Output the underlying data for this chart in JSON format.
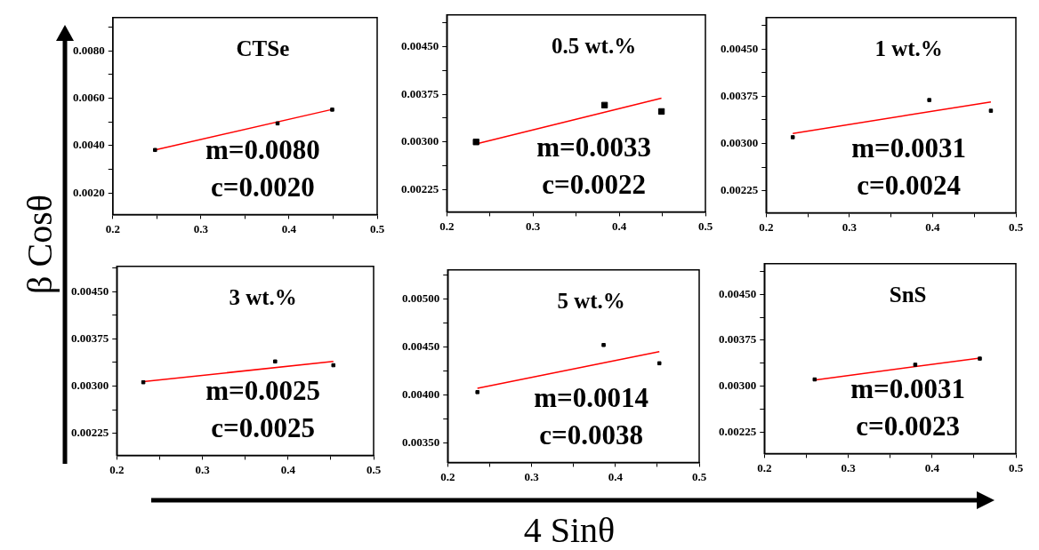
{
  "chart_data": [
    {
      "type": "scatter",
      "title": "CTSe",
      "ylabel": "β Cosθ",
      "annotations": [
        "m=0.0080",
        "c=0.0020"
      ],
      "grid": false,
      "xlim": [
        0.2,
        0.5
      ],
      "xticks": [
        {
          "value": 0.2,
          "label": "0.2"
        },
        {
          "value": 0.25,
          "label": null
        },
        {
          "value": 0.3,
          "label": "0.3"
        },
        {
          "value": 0.35,
          "label": null
        },
        {
          "value": 0.4,
          "label": "0.4"
        },
        {
          "value": 0.45,
          "label": null
        },
        {
          "value": 0.5,
          "label": "0.5"
        }
      ],
      "ylim": [
        0.0011,
        0.0094
      ],
      "yticks": [
        {
          "value": 0.002,
          "label": "0.0020"
        },
        {
          "value": 0.003,
          "label": null
        },
        {
          "value": 0.004,
          "label": "0.0040"
        },
        {
          "value": 0.005,
          "label": null
        },
        {
          "value": 0.006,
          "label": "0.0060"
        },
        {
          "value": 0.007,
          "label": null
        },
        {
          "value": 0.008,
          "label": "0.0080"
        },
        {
          "value": 0.009,
          "label": null
        }
      ],
      "series": [
        {
          "type": "scatter",
          "marker": "square",
          "color": "#000000",
          "x": [
            0.248,
            0.387,
            0.449
          ],
          "values": [
            0.00382,
            0.00494,
            0.00552
          ]
        },
        {
          "type": "line",
          "marker": "none",
          "color": "#ff0000",
          "x": [
            0.248,
            0.449
          ],
          "values": [
            0.00382,
            0.00553
          ]
        }
      ]
    },
    {
      "type": "scatter",
      "title": "0.5 wt.%",
      "annotations": [
        "m=0.0033",
        "c=0.0022"
      ],
      "grid": false,
      "xlim": [
        0.2,
        0.5
      ],
      "xticks": [
        {
          "value": 0.2,
          "label": "0.2"
        },
        {
          "value": 0.25,
          "label": null
        },
        {
          "value": 0.3,
          "label": "0.3"
        },
        {
          "value": 0.35,
          "label": null
        },
        {
          "value": 0.4,
          "label": "0.4"
        },
        {
          "value": 0.45,
          "label": null
        },
        {
          "value": 0.5,
          "label": "0.5"
        }
      ],
      "ylim": [
        0.0019,
        0.005
      ],
      "yticks": [
        {
          "value": 0.00225,
          "label": "0.00225"
        },
        {
          "value": 0.002625,
          "label": null
        },
        {
          "value": 0.003,
          "label": "0.00300"
        },
        {
          "value": 0.003375,
          "label": null
        },
        {
          "value": 0.00375,
          "label": "0.00375"
        },
        {
          "value": 0.004125,
          "label": null
        },
        {
          "value": 0.0045,
          "label": "0.00450"
        },
        {
          "value": 0.004875,
          "label": null
        }
      ],
      "series": [
        {
          "type": "scatter",
          "marker": "square",
          "color": "#000000",
          "x": [
            0.234,
            0.383,
            0.449
          ],
          "values": [
            0.003,
            0.00358,
            0.00348
          ]
        },
        {
          "type": "line",
          "marker": "none",
          "color": "#ff0000",
          "x": [
            0.234,
            0.449
          ],
          "values": [
            0.00297,
            0.00369
          ]
        }
      ]
    },
    {
      "type": "scatter",
      "title": "1 wt.%",
      "annotations": [
        "m=0.0031",
        "c=0.0024"
      ],
      "grid": false,
      "xlim": [
        0.2,
        0.5
      ],
      "xticks": [
        {
          "value": 0.2,
          "label": "0.2"
        },
        {
          "value": 0.25,
          "label": null
        },
        {
          "value": 0.3,
          "label": "0.3"
        },
        {
          "value": 0.35,
          "label": null
        },
        {
          "value": 0.4,
          "label": "0.4"
        },
        {
          "value": 0.45,
          "label": null
        },
        {
          "value": 0.5,
          "label": "0.5"
        }
      ],
      "ylim": [
        0.0019,
        0.005
      ],
      "yticks": [
        {
          "value": 0.00225,
          "label": "0.00225"
        },
        {
          "value": 0.002625,
          "label": null
        },
        {
          "value": 0.003,
          "label": "0.00300"
        },
        {
          "value": 0.003375,
          "label": null
        },
        {
          "value": 0.00375,
          "label": "0.00375"
        },
        {
          "value": 0.004125,
          "label": null
        },
        {
          "value": 0.0045,
          "label": "0.00450"
        },
        {
          "value": 0.004875,
          "label": null
        }
      ],
      "series": [
        {
          "type": "scatter",
          "marker": "square",
          "color": "#000000",
          "x": [
            0.232,
            0.396,
            0.47
          ],
          "values": [
            0.0031,
            0.00369,
            0.00352
          ]
        },
        {
          "type": "line",
          "marker": "none",
          "color": "#ff0000",
          "x": [
            0.232,
            0.47
          ],
          "values": [
            0.00316,
            0.00366
          ]
        }
      ]
    },
    {
      "type": "scatter",
      "title": "3 wt.%",
      "annotations": [
        "m=0.0025",
        "c=0.0025"
      ],
      "grid": false,
      "xlim": [
        0.2,
        0.5
      ],
      "xticks": [
        {
          "value": 0.2,
          "label": "0.2"
        },
        {
          "value": 0.25,
          "label": null
        },
        {
          "value": 0.3,
          "label": "0.3"
        },
        {
          "value": 0.35,
          "label": null
        },
        {
          "value": 0.4,
          "label": "0.4"
        },
        {
          "value": 0.45,
          "label": null
        },
        {
          "value": 0.5,
          "label": "0.5"
        }
      ],
      "ylim": [
        0.0019,
        0.0049
      ],
      "yticks": [
        {
          "value": 0.00225,
          "label": "0.00225"
        },
        {
          "value": 0.002625,
          "label": null
        },
        {
          "value": 0.003,
          "label": "0.00300"
        },
        {
          "value": 0.003375,
          "label": null
        },
        {
          "value": 0.00375,
          "label": "0.00375"
        },
        {
          "value": 0.004125,
          "label": null
        },
        {
          "value": 0.0045,
          "label": "0.00450"
        },
        {
          "value": 0.004875,
          "label": null
        }
      ],
      "series": [
        {
          "type": "scatter",
          "marker": "square",
          "color": "#000000",
          "x": [
            0.231,
            0.385,
            0.453
          ],
          "values": [
            0.00306,
            0.00339,
            0.00333
          ]
        },
        {
          "type": "line",
          "marker": "none",
          "color": "#ff0000",
          "x": [
            0.231,
            0.453
          ],
          "values": [
            0.00307,
            0.00339
          ]
        }
      ]
    },
    {
      "type": "scatter",
      "title": "5 wt.%",
      "xlabel": "4 Sinθ",
      "annotations": [
        "m=0.0014",
        "c=0.0038"
      ],
      "grid": false,
      "xlim": [
        0.2,
        0.5
      ],
      "xticks": [
        {
          "value": 0.2,
          "label": "0.2"
        },
        {
          "value": 0.25,
          "label": null
        },
        {
          "value": 0.3,
          "label": "0.3"
        },
        {
          "value": 0.35,
          "label": null
        },
        {
          "value": 0.4,
          "label": "0.4"
        },
        {
          "value": 0.45,
          "label": null
        },
        {
          "value": 0.5,
          "label": "0.5"
        }
      ],
      "ylim": [
        0.0033,
        0.0053
      ],
      "yticks": [
        {
          "value": 0.0035,
          "label": "0.00350"
        },
        {
          "value": 0.00375,
          "label": null
        },
        {
          "value": 0.004,
          "label": "0.00400"
        },
        {
          "value": 0.00425,
          "label": null
        },
        {
          "value": 0.0045,
          "label": "0.00450"
        },
        {
          "value": 0.00475,
          "label": null
        },
        {
          "value": 0.005,
          "label": "0.00500"
        },
        {
          "value": 0.00525,
          "label": null
        }
      ],
      "series": [
        {
          "type": "scatter",
          "marker": "square",
          "color": "#000000",
          "x": [
            0.2355,
            0.386,
            0.4525
          ],
          "values": [
            0.00403,
            0.00452,
            0.00433
          ]
        },
        {
          "type": "line",
          "marker": "none",
          "color": "#ff0000",
          "x": [
            0.2355,
            0.4525
          ],
          "values": [
            0.00407,
            0.00445
          ]
        }
      ]
    },
    {
      "type": "scatter",
      "title": "SnS",
      "annotations": [
        "m=0.0031",
        "c=0.0023"
      ],
      "grid": false,
      "xlim": [
        0.2,
        0.5
      ],
      "xticks": [
        {
          "value": 0.2,
          "label": "0.2"
        },
        {
          "value": 0.25,
          "label": null
        },
        {
          "value": 0.3,
          "label": "0.3"
        },
        {
          "value": 0.35,
          "label": null
        },
        {
          "value": 0.4,
          "label": "0.4"
        },
        {
          "value": 0.45,
          "label": null
        },
        {
          "value": 0.5,
          "label": "0.5"
        }
      ],
      "ylim": [
        0.0019,
        0.005
      ],
      "yticks": [
        {
          "value": 0.00225,
          "label": "0.00225"
        },
        {
          "value": 0.002625,
          "label": null
        },
        {
          "value": 0.003,
          "label": "0.00300"
        },
        {
          "value": 0.003375,
          "label": null
        },
        {
          "value": 0.00375,
          "label": "0.00375"
        },
        {
          "value": 0.004125,
          "label": null
        },
        {
          "value": 0.0045,
          "label": "0.00450"
        },
        {
          "value": 0.004875,
          "label": null
        }
      ],
      "series": [
        {
          "type": "scatter",
          "marker": "square",
          "color": "#000000",
          "x": [
            0.26,
            0.38,
            0.457
          ],
          "values": [
            0.00311,
            0.00335,
            0.00345
          ]
        },
        {
          "type": "line",
          "marker": "none",
          "color": "#ff0000",
          "x": [
            0.26,
            0.457
          ],
          "values": [
            0.0031,
            0.00346
          ]
        }
      ]
    }
  ]
}
